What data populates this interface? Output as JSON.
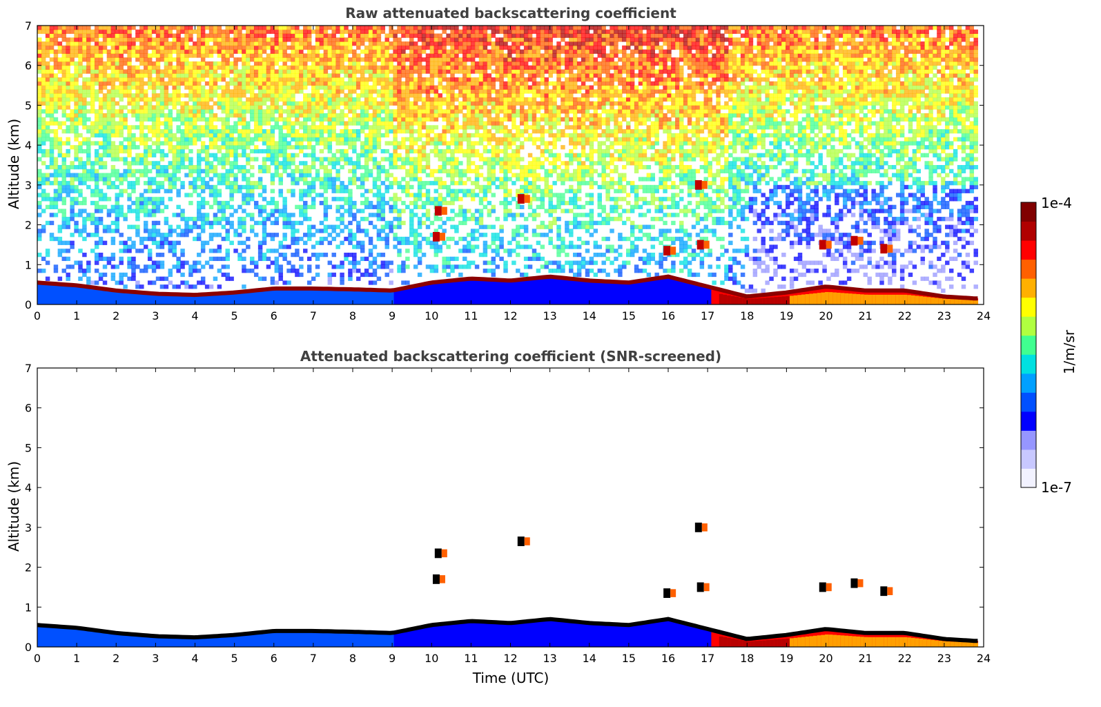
{
  "chart_data": [
    {
      "type": "heatmap",
      "title": "Raw attenuated backscattering coefficient",
      "xlabel": "",
      "ylabel": "Altitude (km)",
      "xlim": [
        0,
        24
      ],
      "ylim": [
        0,
        7
      ],
      "xticks": [
        "0",
        "1",
        "2",
        "3",
        "4",
        "5",
        "6",
        "7",
        "8",
        "9",
        "10",
        "11",
        "12",
        "13",
        "14",
        "15",
        "16",
        "17",
        "18",
        "19",
        "20",
        "21",
        "22",
        "23",
        "24"
      ],
      "yticks": [
        "0",
        "1",
        "2",
        "3",
        "4",
        "5",
        "6",
        "7"
      ],
      "boundary_layer_top_km": [
        {
          "t": 0,
          "h": 0.55
        },
        {
          "t": 1,
          "h": 0.48
        },
        {
          "t": 2,
          "h": 0.35
        },
        {
          "t": 3,
          "h": 0.27
        },
        {
          "t": 4,
          "h": 0.24
        },
        {
          "t": 5,
          "h": 0.3
        },
        {
          "t": 6,
          "h": 0.4
        },
        {
          "t": 7,
          "h": 0.4
        },
        {
          "t": 8,
          "h": 0.38
        },
        {
          "t": 9,
          "h": 0.35
        },
        {
          "t": 10,
          "h": 0.55
        },
        {
          "t": 11,
          "h": 0.65
        },
        {
          "t": 12,
          "h": 0.6
        },
        {
          "t": 13,
          "h": 0.7
        },
        {
          "t": 14,
          "h": 0.6
        },
        {
          "t": 15,
          "h": 0.55
        },
        {
          "t": 16,
          "h": 0.7
        },
        {
          "t": 17,
          "h": 0.45
        },
        {
          "t": 18,
          "h": 0.2
        },
        {
          "t": 19,
          "h": 0.3
        },
        {
          "t": 20,
          "h": 0.45
        },
        {
          "t": 21,
          "h": 0.35
        },
        {
          "t": 22,
          "h": 0.35
        },
        {
          "t": 23,
          "h": 0.2
        },
        {
          "t": 23.8,
          "h": 0.15
        }
      ],
      "cloud_features": [
        {
          "t": 10.15,
          "h": 2.35
        },
        {
          "t": 10.1,
          "h": 1.7
        },
        {
          "t": 12.25,
          "h": 2.65
        },
        {
          "t": 16.75,
          "h": 3.0
        },
        {
          "t": 16.8,
          "h": 1.5
        },
        {
          "t": 15.95,
          "h": 1.35
        },
        {
          "t": 19.9,
          "h": 1.5
        },
        {
          "t": 20.7,
          "h": 1.6
        },
        {
          "t": 21.45,
          "h": 1.4
        }
      ]
    },
    {
      "type": "heatmap",
      "title": "Attenuated backscattering coefficient (SNR-screened)",
      "xlabel": "Time (UTC)",
      "ylabel": "Altitude (km)",
      "xlim": [
        0,
        24
      ],
      "ylim": [
        0,
        7
      ],
      "xticks": [
        "0",
        "1",
        "2",
        "3",
        "4",
        "5",
        "6",
        "7",
        "8",
        "9",
        "10",
        "11",
        "12",
        "13",
        "14",
        "15",
        "16",
        "17",
        "18",
        "19",
        "20",
        "21",
        "22",
        "23",
        "24"
      ],
      "yticks": [
        "0",
        "1",
        "2",
        "3",
        "4",
        "5",
        "6",
        "7"
      ]
    }
  ],
  "colorbar": {
    "max_label": "1e-4",
    "min_label": "1e-7",
    "unit_label": "1/m/sr",
    "colors": [
      "#f2f2ff",
      "#c8c8ff",
      "#9696ff",
      "#0000ff",
      "#0050ff",
      "#00a0ff",
      "#00e0e0",
      "#40ff90",
      "#b0ff40",
      "#ffff00",
      "#ffb000",
      "#ff6000",
      "#ff0000",
      "#b00000",
      "#800000"
    ]
  }
}
